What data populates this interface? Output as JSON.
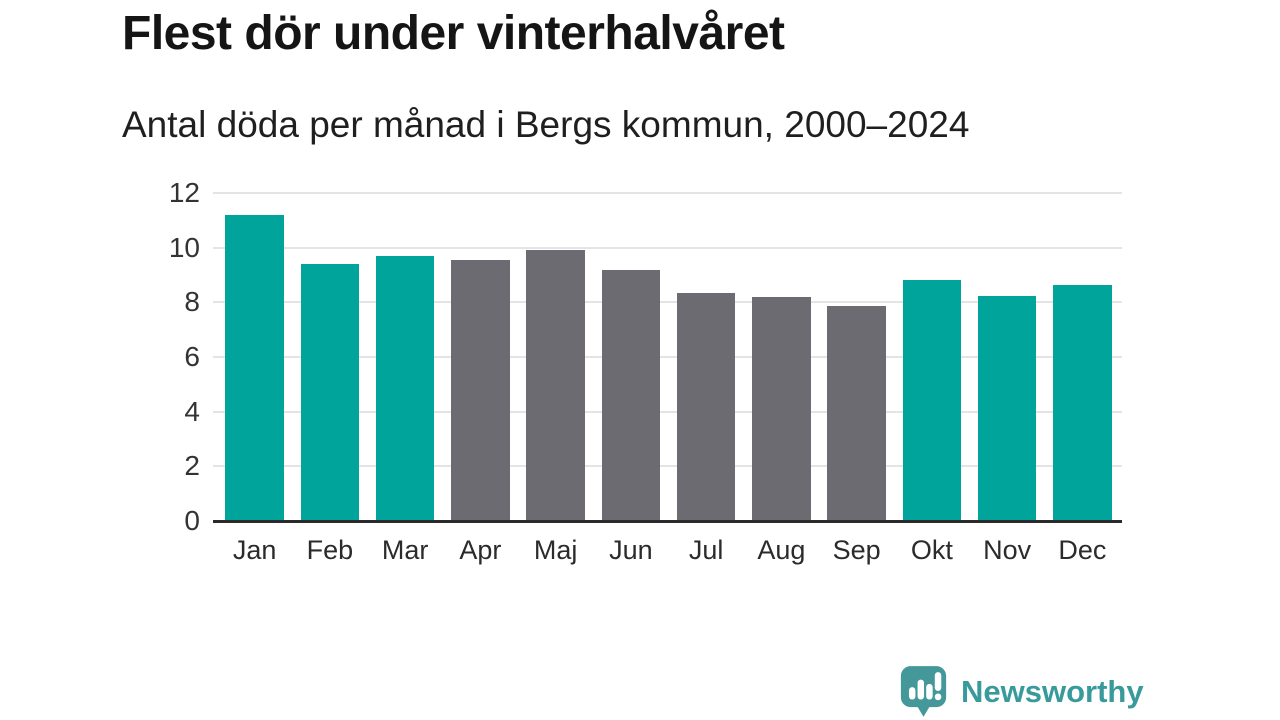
{
  "header": {
    "title": "Flest dör under vinterhalvåret",
    "subtitle": "Antal döda per månad i Bergs kommun, 2000–2024"
  },
  "chart_data": {
    "type": "bar",
    "categories": [
      "Jan",
      "Feb",
      "Mar",
      "Apr",
      "Maj",
      "Jun",
      "Jul",
      "Aug",
      "Sep",
      "Okt",
      "Nov",
      "Dec"
    ],
    "values": [
      11.2,
      9.4,
      9.7,
      9.55,
      9.9,
      9.2,
      8.35,
      8.2,
      7.85,
      8.8,
      8.25,
      8.65
    ],
    "bar_colors": [
      "#00a49b",
      "#00a49b",
      "#00a49b",
      "#6c6b71",
      "#6c6b71",
      "#6c6b71",
      "#6c6b71",
      "#6c6b71",
      "#6c6b71",
      "#00a49b",
      "#00a49b",
      "#00a49b"
    ],
    "palette": {
      "winter_highlight": "#00a49b",
      "summer_neutral": "#6c6b71"
    },
    "title": "Flest dör under vinterhalvåret",
    "subtitle": "Antal döda per månad i Bergs kommun, 2000–2024",
    "xlabel": "",
    "ylabel": "",
    "ylim": [
      0,
      12
    ],
    "yticks": [
      0,
      2,
      4,
      6,
      8,
      10,
      12
    ],
    "grid": true,
    "legend": false,
    "gridline_color": "#e4e4e4",
    "axis_color": "#2a2a2a"
  },
  "footer": {
    "brand": "Newsworthy",
    "brand_color": "#389a9b",
    "logo_icon": "newsworthy-speech-bubble-bar-chart-icon",
    "logo_icon_color": "#44989a"
  }
}
